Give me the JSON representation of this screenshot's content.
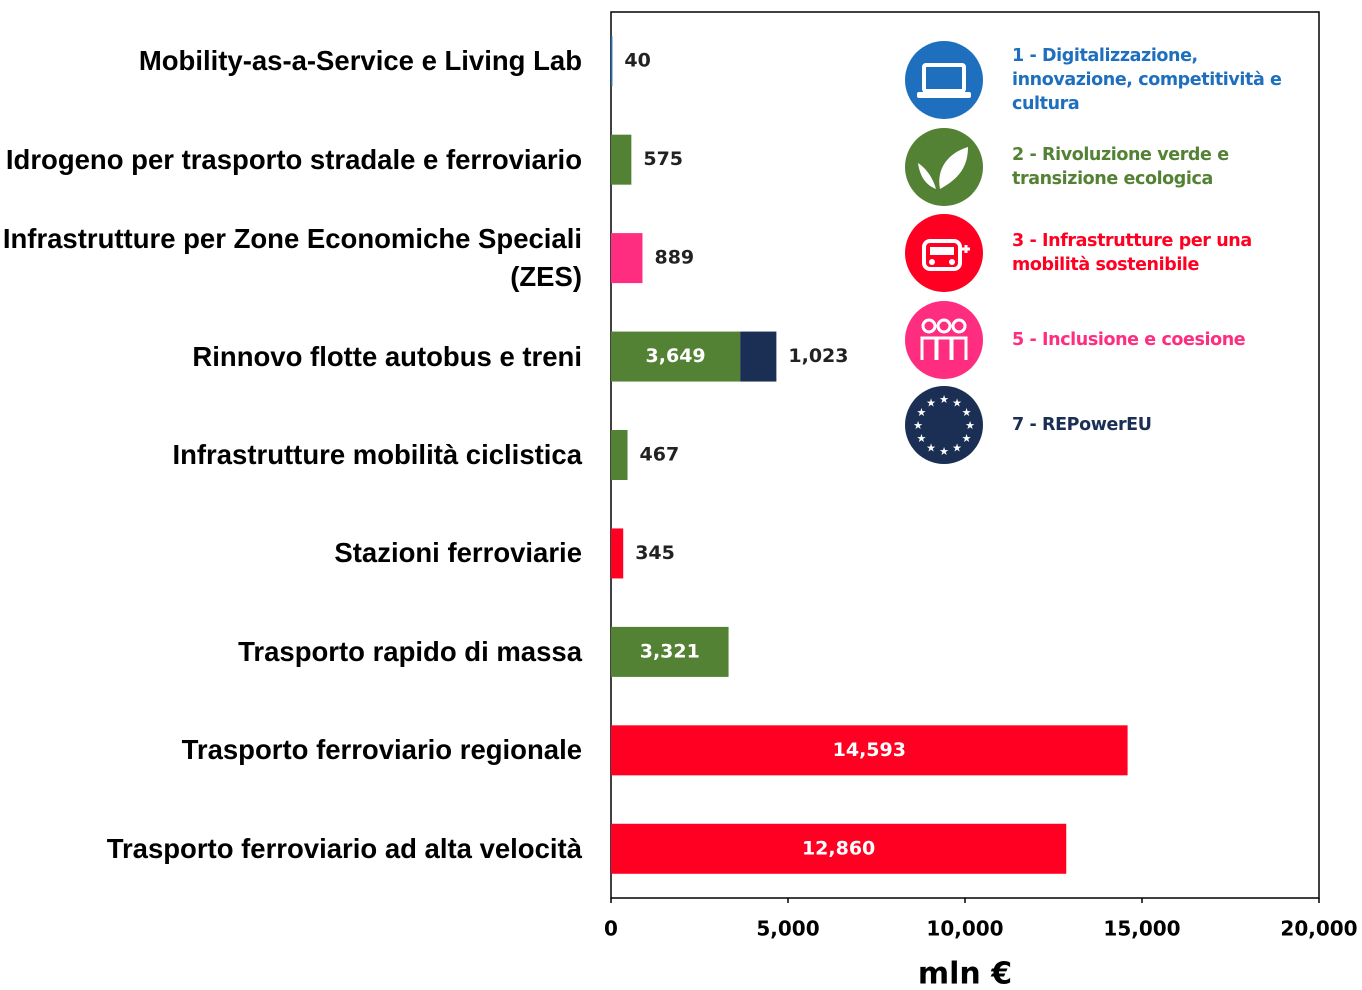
{
  "chart_data": {
    "type": "stacked-barh",
    "categories": [
      "Mobility-as-a-Service e Living Lab",
      "Idrogeno per trasporto stradale e ferroviario",
      "Infrastrutture per Zone Economiche Speciali (ZES)",
      "Rinnovo flotte autobus e treni",
      "Infrastrutture mobilità ciclistica",
      "Stazioni ferroviarie",
      "Trasporto rapido di massa",
      "Trasporto ferroviario regionale",
      "Trasporto ferroviario ad alta velocità"
    ],
    "series": [
      {
        "name": "1 - Digitalizzazione, innovazione, competitività e cultura",
        "color": "#1f6fbf",
        "values": [
          40,
          null,
          null,
          null,
          null,
          null,
          null,
          null,
          null
        ]
      },
      {
        "name": "2 - Rivoluzione verde e transizione ecologica",
        "color": "#548235",
        "values": [
          null,
          575,
          null,
          3649,
          467,
          null,
          3321,
          null,
          null
        ],
        "value_labels": [
          null,
          null,
          null,
          "3,649",
          null,
          null,
          "3,321",
          null,
          null
        ]
      },
      {
        "name": "3 - Infrastrutture per una mobilità sostenibile",
        "color": "#ff0022",
        "values": [
          null,
          null,
          null,
          null,
          null,
          345,
          null,
          14593,
          12860
        ],
        "value_labels": [
          null,
          null,
          null,
          null,
          null,
          null,
          null,
          "14,593",
          "12,860"
        ]
      },
      {
        "name": "5 - Inclusione e coesione",
        "color": "#ff2d80",
        "values": [
          null,
          null,
          889,
          null,
          null,
          null,
          null,
          null,
          null
        ]
      },
      {
        "name": "7 - REPowerEU",
        "color": "#1b2f55",
        "values": [
          null,
          null,
          null,
          1023,
          null,
          null,
          null,
          null,
          null
        ],
        "value_labels": [
          null,
          null,
          null,
          "1,023",
          null,
          null,
          null,
          null,
          null
        ]
      }
    ],
    "xlabel": "mln €",
    "xlim": [
      0,
      20000
    ],
    "xticks": [
      0,
      {
        "value": 5000,
        "label": "5,000"
      },
      {
        "value": 10000,
        "label": "10,000"
      },
      {
        "value": 15000,
        "label": "15,000"
      },
      {
        "value": 20000,
        "label": "20,000"
      }
    ],
    "legend": "top-right"
  }
}
